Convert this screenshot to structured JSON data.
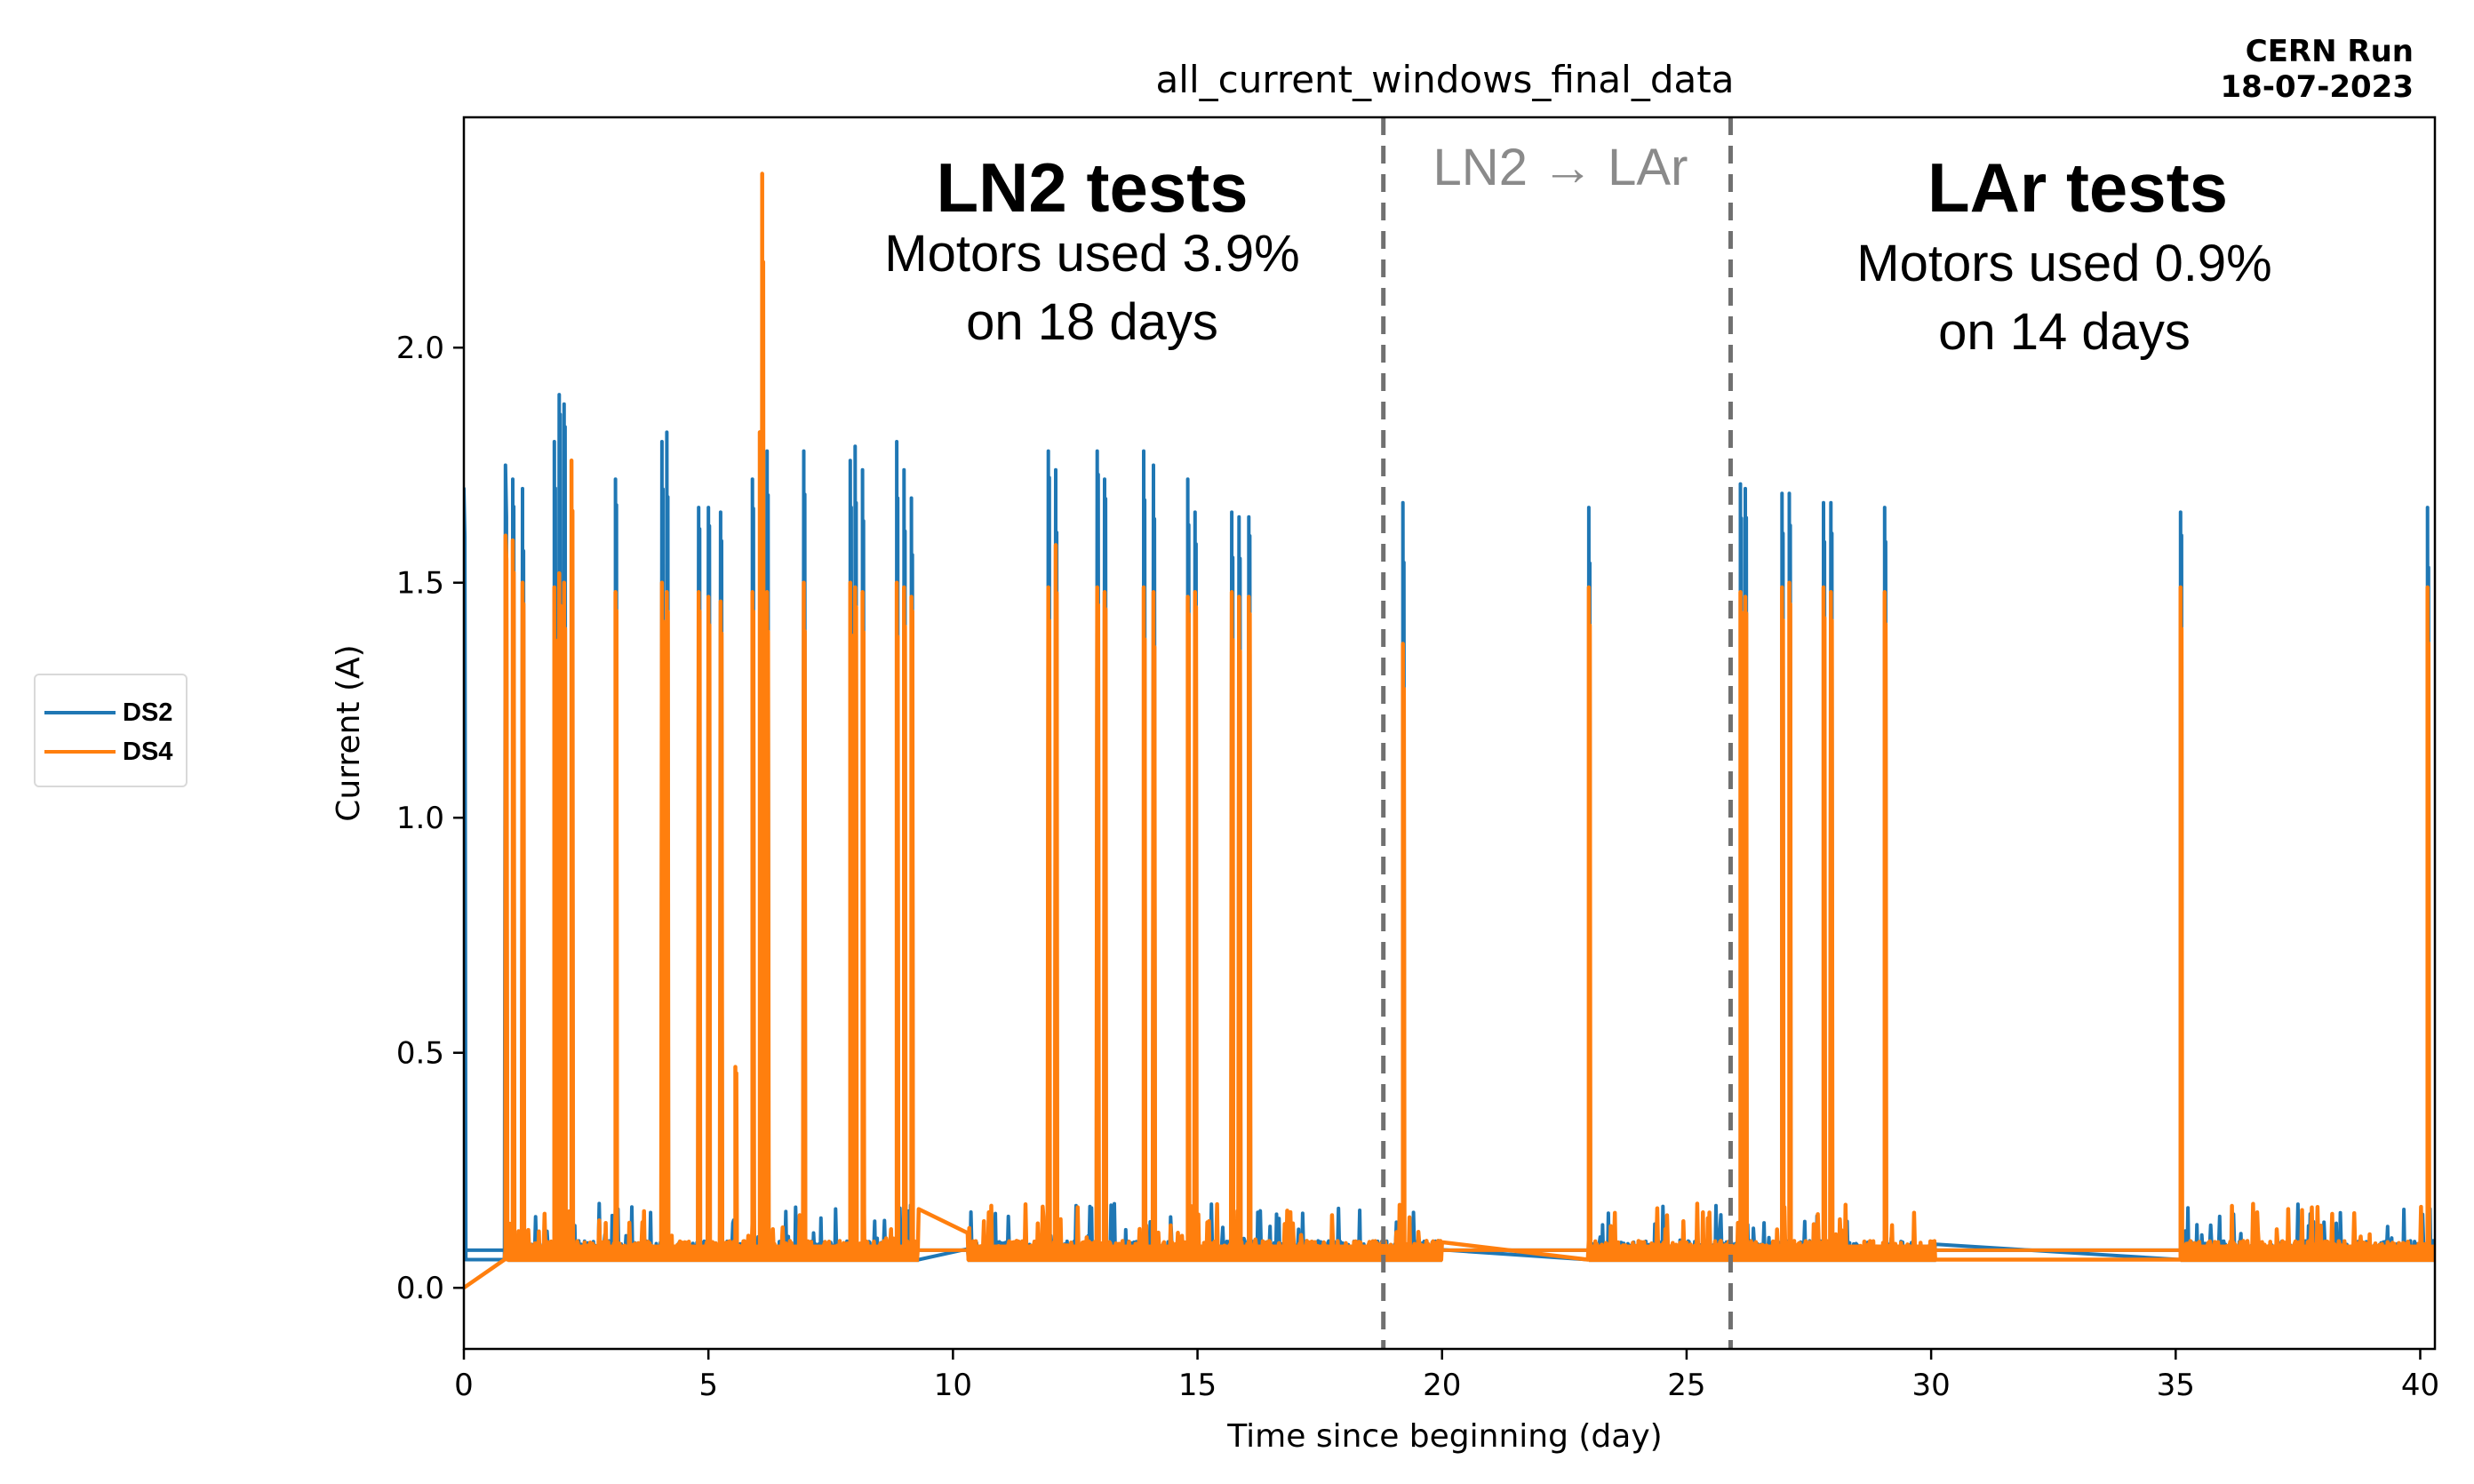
{
  "header": {
    "corner_line1": "CERN Run",
    "corner_line2": "18-07-2023"
  },
  "legend": {
    "items": [
      {
        "label": "DS2",
        "color": "#1f77b4"
      },
      {
        "label": "DS4",
        "color": "#ff7f0e"
      }
    ]
  },
  "annotations": {
    "ln2_title": "LN2 tests",
    "ln2_line1": "Motors used 3.9%",
    "ln2_line2": "on 18 days",
    "transition": "LN2 → LAr",
    "lar_title": "LAr tests",
    "lar_line1": "Motors used 0.9%",
    "lar_line2": "on 14 days"
  },
  "chart_data": {
    "type": "line",
    "title": "all_current_windows_final_data",
    "xlabel": "Time since beginning (day)",
    "ylabel": "Current (A)",
    "xlim": [
      0,
      40.3
    ],
    "ylim": [
      -0.13,
      2.49
    ],
    "xticks": [
      0,
      5,
      10,
      15,
      20,
      25,
      30,
      35,
      40
    ],
    "yticks": [
      0.0,
      0.5,
      1.0,
      1.5,
      2.0
    ],
    "vlines": [
      18.8,
      25.9
    ],
    "grid": false,
    "colors": {
      "DS2": "#1f77b4",
      "DS4": "#ff7f0e",
      "vline": "#707070",
      "transition": "#8a8a8a"
    },
    "series": [
      {
        "name": "DS2",
        "baseline": 0.08,
        "active_level": 0.06,
        "noise_segments": [
          [
            0.9,
            9.3
          ],
          [
            10.3,
            16.3
          ],
          [
            16.3,
            18.8
          ],
          [
            18.8,
            20.0
          ],
          [
            23.0,
            30.1
          ],
          [
            35.1,
            40.3
          ]
        ],
        "spikes": [
          [
            0.0,
            1.7
          ],
          [
            0.85,
            1.75
          ],
          [
            1.0,
            1.72
          ],
          [
            1.2,
            1.7
          ],
          [
            1.85,
            1.8
          ],
          [
            1.95,
            1.9
          ],
          [
            2.05,
            1.88
          ],
          [
            2.2,
            1.6
          ],
          [
            3.1,
            1.72
          ],
          [
            4.05,
            1.8
          ],
          [
            4.15,
            1.82
          ],
          [
            4.8,
            1.66
          ],
          [
            5.0,
            1.66
          ],
          [
            5.25,
            1.65
          ],
          [
            5.9,
            1.72
          ],
          [
            6.05,
            1.8
          ],
          [
            6.2,
            1.78
          ],
          [
            6.95,
            1.78
          ],
          [
            7.9,
            1.76
          ],
          [
            8.0,
            1.79
          ],
          [
            8.15,
            1.74
          ],
          [
            8.85,
            1.8
          ],
          [
            9.0,
            1.74
          ],
          [
            9.15,
            1.68
          ],
          [
            11.95,
            1.78
          ],
          [
            12.1,
            1.74
          ],
          [
            12.95,
            1.78
          ],
          [
            13.1,
            1.72
          ],
          [
            13.9,
            1.78
          ],
          [
            14.1,
            1.75
          ],
          [
            14.8,
            1.72
          ],
          [
            14.95,
            1.65
          ],
          [
            15.7,
            1.65
          ],
          [
            15.85,
            1.64
          ],
          [
            16.05,
            1.64
          ],
          [
            19.2,
            1.67
          ],
          [
            23.0,
            1.66
          ],
          [
            26.1,
            1.71
          ],
          [
            26.2,
            1.7
          ],
          [
            26.95,
            1.69
          ],
          [
            27.1,
            1.69
          ],
          [
            27.8,
            1.67
          ],
          [
            27.95,
            1.67
          ],
          [
            29.05,
            1.66
          ],
          [
            35.1,
            1.65
          ],
          [
            40.15,
            1.66
          ]
        ]
      },
      {
        "name": "DS4",
        "start_ramp": [
          [
            0.0,
            0.0
          ],
          [
            0.85,
            0.08
          ]
        ],
        "baseline": 0.08,
        "active_level": 0.06,
        "noise_segments": [
          [
            0.9,
            9.3
          ],
          [
            10.3,
            16.3
          ],
          [
            16.3,
            18.8
          ],
          [
            18.8,
            20.0
          ],
          [
            23.0,
            30.1
          ],
          [
            35.1,
            40.3
          ]
        ],
        "spikes": [
          [
            0.85,
            1.6
          ],
          [
            1.0,
            1.59
          ],
          [
            1.2,
            1.5
          ],
          [
            1.85,
            1.49
          ],
          [
            1.95,
            1.52
          ],
          [
            2.05,
            1.5
          ],
          [
            2.2,
            1.76
          ],
          [
            3.1,
            1.48
          ],
          [
            4.05,
            1.5
          ],
          [
            4.15,
            1.48
          ],
          [
            4.8,
            1.48
          ],
          [
            5.0,
            1.47
          ],
          [
            5.25,
            1.46
          ],
          [
            5.55,
            0.47
          ],
          [
            5.9,
            1.48
          ],
          [
            6.05,
            1.82
          ],
          [
            6.1,
            2.37
          ],
          [
            6.2,
            1.48
          ],
          [
            6.95,
            1.5
          ],
          [
            7.9,
            1.5
          ],
          [
            8.0,
            1.49
          ],
          [
            8.15,
            1.48
          ],
          [
            8.85,
            1.5
          ],
          [
            9.0,
            1.49
          ],
          [
            9.15,
            1.47
          ],
          [
            11.95,
            1.49
          ],
          [
            12.1,
            1.58
          ],
          [
            12.95,
            1.49
          ],
          [
            13.1,
            1.48
          ],
          [
            13.9,
            1.49
          ],
          [
            14.1,
            1.48
          ],
          [
            14.8,
            1.47
          ],
          [
            14.95,
            1.48
          ],
          [
            15.7,
            1.48
          ],
          [
            15.85,
            1.47
          ],
          [
            16.05,
            1.47
          ],
          [
            19.2,
            1.37
          ],
          [
            23.0,
            1.49
          ],
          [
            26.1,
            1.48
          ],
          [
            26.2,
            1.47
          ],
          [
            26.95,
            1.49
          ],
          [
            27.1,
            1.5
          ],
          [
            27.8,
            1.49
          ],
          [
            27.95,
            1.48
          ],
          [
            29.05,
            1.48
          ],
          [
            35.1,
            1.49
          ],
          [
            40.15,
            1.49
          ]
        ]
      }
    ]
  }
}
